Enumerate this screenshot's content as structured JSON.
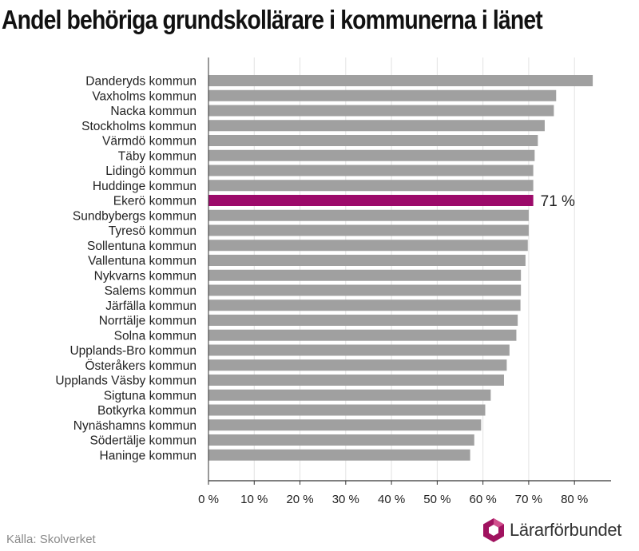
{
  "title": "Andel behöriga grundskollärare i kommunerna i länet",
  "source": "Källa: Skolverket",
  "logo_text": "Lärarförbundet",
  "colors": {
    "bar": "#a0a0a0",
    "highlight": "#9c0a6a",
    "grid": "#e2e2e2",
    "axis": "#333333",
    "logo_primary": "#a0125f",
    "logo_secondary": "#d14f8d"
  },
  "icons": {
    "logo": "lararforbundet-logo-icon"
  },
  "chart_data": {
    "type": "bar",
    "orientation": "horizontal",
    "title": "Andel behöriga grundskollärare i kommunerna i länet",
    "categories": [
      "Danderyds kommun",
      "Vaxholms kommun",
      "Nacka kommun",
      "Stockholms kommun",
      "Värmdö kommun",
      "Täby kommun",
      "Lidingö kommun",
      "Huddinge kommun",
      "Ekerö kommun",
      "Sundbybergs kommun",
      "Tyresö kommun",
      "Sollentuna kommun",
      "Vallentuna kommun",
      "Nykvarns kommun",
      "Salems kommun",
      "Järfälla kommun",
      "Norrtälje kommun",
      "Solna kommun",
      "Upplands-Bro kommun",
      "Österåkers kommun",
      "Upplands Väsby kommun",
      "Sigtuna kommun",
      "Botkyrka kommun",
      "Nynäshamns kommun",
      "Södertälje kommun",
      "Haninge kommun"
    ],
    "values": [
      84,
      76,
      75.5,
      73.5,
      72,
      71.3,
      71,
      71,
      71,
      70,
      70,
      69.8,
      69.3,
      68.3,
      68.3,
      68.2,
      67.6,
      67.3,
      65.8,
      65.2,
      64.6,
      61.7,
      60.5,
      59.6,
      58.1,
      57.2
    ],
    "highlight_category": "Ekerö kommun",
    "highlight_label": "71 %",
    "xlim": [
      0,
      88
    ],
    "xticks": [
      0,
      10,
      20,
      30,
      40,
      50,
      60,
      70,
      80
    ],
    "xtick_labels": [
      "0 %",
      "10 %",
      "20 %",
      "30 %",
      "40 %",
      "50 %",
      "60 %",
      "70 %",
      "80 %"
    ],
    "xlabel": "",
    "ylabel": "",
    "grid": true,
    "legend": "none"
  }
}
